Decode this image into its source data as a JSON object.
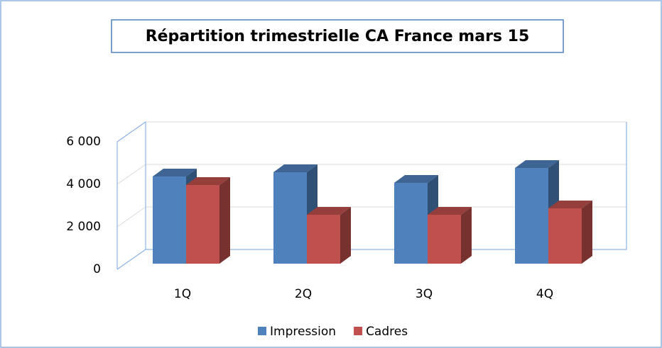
{
  "chart_data": {
    "type": "bar3d",
    "title": "Répartition trimestrielle CA France mars 15",
    "categories": [
      "1Q",
      "2Q",
      "3Q",
      "4Q"
    ],
    "series": [
      {
        "name": "Impression",
        "color": "#4f81bd",
        "values": [
          4100,
          4300,
          3800,
          4500
        ]
      },
      {
        "name": "Cadres",
        "color": "#c0504d",
        "values": [
          3700,
          2300,
          2300,
          2600
        ]
      }
    ],
    "ylim": [
      0,
      6000
    ],
    "yticks": [
      0,
      {
        "value": 2000,
        "label": "2 000"
      },
      {
        "value": 4000,
        "label": "4 000"
      },
      {
        "value": 6000,
        "label": "6 000"
      }
    ],
    "grid": true,
    "legend": "bottom"
  }
}
